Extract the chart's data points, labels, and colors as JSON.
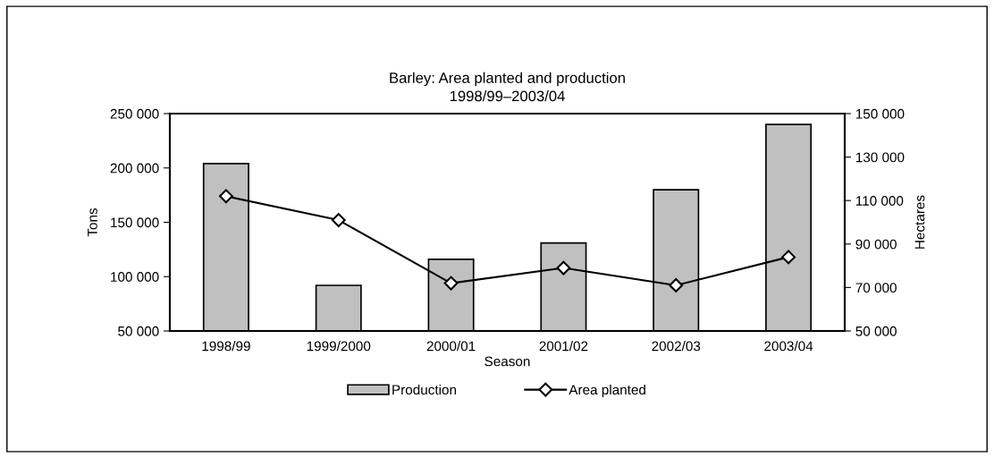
{
  "chart_data": {
    "type": "bar",
    "title": "Barley: Area planted and production\n1998/99–2003/04",
    "xlabel": "Season",
    "ylabel": "Tons",
    "y2label": "Hectares",
    "categories": [
      "1998/99",
      "1999/2000",
      "2000/01",
      "2001/02",
      "2002/03",
      "2003/04"
    ],
    "series": [
      {
        "name": "Production",
        "color": "#c0c0c0",
        "values": [
          204000,
          92000,
          116000,
          131000,
          180000,
          240000
        ]
      },
      {
        "name": "Area planted",
        "type": "line",
        "axis": "y2",
        "color": "#000000",
        "marker": "diamond",
        "values": [
          112000,
          101000,
          72000,
          79000,
          71000,
          84000
        ]
      }
    ],
    "ylim": [
      50000,
      250000
    ],
    "yticks": [
      {
        "value": 50000,
        "label": "50 000"
      },
      {
        "value": 100000,
        "label": "100 000"
      },
      {
        "value": 150000,
        "label": "150 000"
      },
      {
        "value": 200000,
        "label": "200 000"
      },
      {
        "value": 250000,
        "label": "250 000"
      }
    ],
    "y2lim": [
      50000,
      150000
    ],
    "y2ticks": [
      {
        "value": 50000,
        "label": "50 000"
      },
      {
        "value": 70000,
        "label": "70 000"
      },
      {
        "value": 90000,
        "label": "90 000"
      },
      {
        "value": 110000,
        "label": "110 000"
      },
      {
        "value": 130000,
        "label": "130 000"
      },
      {
        "value": 150000,
        "label": "150 000"
      }
    ],
    "grid": false,
    "legend": "bottom"
  }
}
